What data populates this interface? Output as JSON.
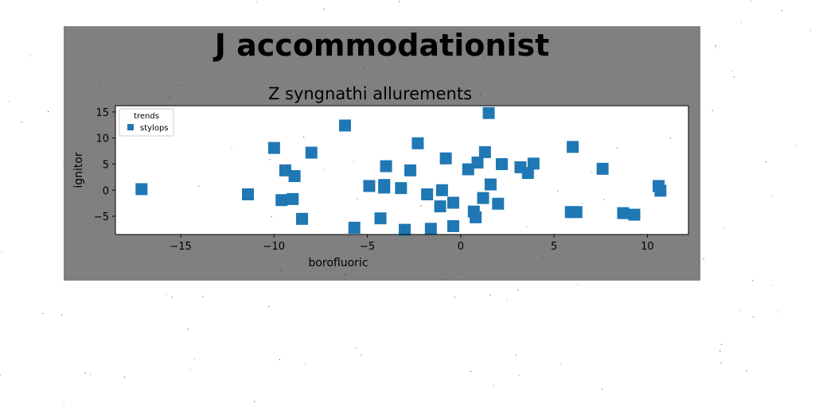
{
  "figure": {
    "suptitle": "J accommodationist",
    "background": "#808080"
  },
  "chart_data": {
    "type": "scatter",
    "title": "Z syngnathi allurements",
    "xlabel": "borofluoric",
    "ylabel": "ignitor",
    "xlim": [
      -18.5,
      12.2
    ],
    "ylim": [
      -8.5,
      16.2
    ],
    "xticks": [
      -15,
      -10,
      -5,
      0,
      5,
      10
    ],
    "yticks": [
      -5,
      0,
      5,
      10,
      15
    ],
    "xtick_labels": [
      "−15",
      "−10",
      "−5",
      "0",
      "5",
      "10"
    ],
    "ytick_labels": [
      "−5",
      "0",
      "5",
      "10",
      "15"
    ],
    "grid": false,
    "legend": {
      "title": "trends",
      "placement": "upper-left"
    },
    "marker": "square",
    "series": [
      {
        "name": "stylops",
        "color": "#1f77b4",
        "points": [
          [
            -17.1,
            0.2
          ],
          [
            -11.4,
            -0.8
          ],
          [
            -10.0,
            8.1
          ],
          [
            -9.6,
            -1.9
          ],
          [
            -9.4,
            3.8
          ],
          [
            -9.0,
            -1.7
          ],
          [
            -8.9,
            2.7
          ],
          [
            -8.5,
            -5.5
          ],
          [
            -8.0,
            7.2
          ],
          [
            -6.2,
            12.4
          ],
          [
            -5.7,
            -7.2
          ],
          [
            -4.9,
            0.8
          ],
          [
            -4.3,
            -5.4
          ],
          [
            -4.1,
            1.0
          ],
          [
            -4.1,
            0.5
          ],
          [
            -4.0,
            4.6
          ],
          [
            -3.2,
            0.4
          ],
          [
            -3.0,
            -7.6
          ],
          [
            -2.7,
            3.8
          ],
          [
            -2.3,
            9.0
          ],
          [
            -1.8,
            -0.8
          ],
          [
            -1.6,
            -7.4
          ],
          [
            -1.1,
            -3.1
          ],
          [
            -1.0,
            0.0
          ],
          [
            -0.8,
            6.1
          ],
          [
            -0.4,
            -2.4
          ],
          [
            -0.4,
            -6.9
          ],
          [
            0.4,
            4.0
          ],
          [
            0.7,
            -4.1
          ],
          [
            0.8,
            -5.2
          ],
          [
            0.9,
            5.3
          ],
          [
            1.2,
            -1.5
          ],
          [
            1.3,
            7.3
          ],
          [
            1.5,
            14.8
          ],
          [
            1.6,
            1.1
          ],
          [
            2.0,
            -2.6
          ],
          [
            2.2,
            5.0
          ],
          [
            3.2,
            4.4
          ],
          [
            3.6,
            3.3
          ],
          [
            3.9,
            5.1
          ],
          [
            5.9,
            -4.2
          ],
          [
            6.0,
            8.3
          ],
          [
            6.2,
            -4.2
          ],
          [
            7.6,
            4.1
          ],
          [
            8.7,
            -4.4
          ],
          [
            9.3,
            -4.7
          ],
          [
            10.6,
            0.8
          ],
          [
            10.7,
            -0.1
          ]
        ]
      }
    ]
  }
}
